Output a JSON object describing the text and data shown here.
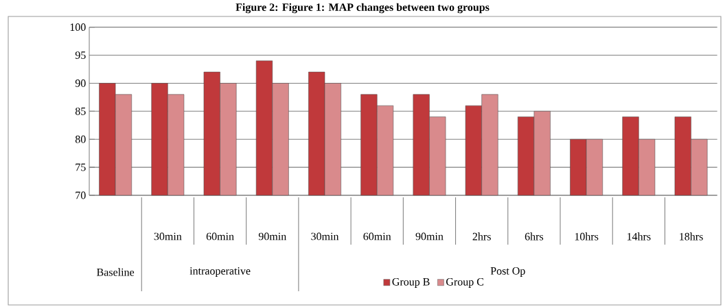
{
  "chart_data": {
    "type": "bar",
    "title": "Figure 2: Figure 1: MAP changes between two groups",
    "categories": [
      null,
      "30min",
      "60min",
      "90min",
      "30min",
      "60min",
      "90min",
      "2hrs",
      "6hrs",
      "10hrs",
      "14hrs",
      "18hrs"
    ],
    "series": [
      {
        "name": "Group B",
        "color": "#c0393b",
        "values": [
          90,
          90,
          92,
          94,
          92,
          88,
          88,
          86,
          84,
          80,
          84,
          84
        ]
      },
      {
        "name": "Group C",
        "color": "#d98a8c",
        "values": [
          88,
          88,
          90,
          90,
          90,
          86,
          84,
          88,
          85,
          80,
          80,
          80
        ]
      }
    ],
    "annotations": [
      "Baseline",
      "intraoperative",
      "Post Op"
    ],
    "ylim": [
      70,
      100
    ],
    "yticks": [
      70,
      75,
      80,
      85,
      90,
      95,
      100
    ],
    "grid": "y",
    "legend": "bottom"
  }
}
